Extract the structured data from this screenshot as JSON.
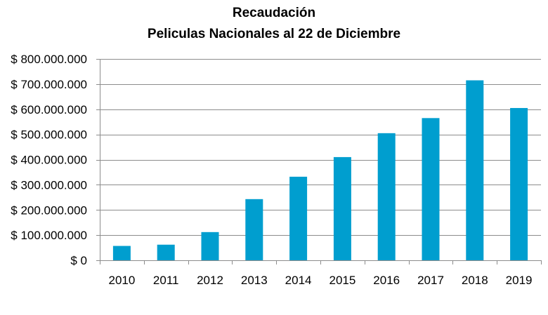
{
  "chart_data": {
    "type": "bar",
    "title": [
      "Recaudación",
      "Peliculas Nacionales  al  22 de Diciembre"
    ],
    "xlabel": "",
    "ylabel": "",
    "categories": [
      "2010",
      "2011",
      "2012",
      "2013",
      "2014",
      "2015",
      "2016",
      "2017",
      "2018",
      "2019"
    ],
    "values": [
      57000000,
      62000000,
      112000000,
      243000000,
      332000000,
      410000000,
      505000000,
      565000000,
      715000000,
      605000000
    ],
    "ylim": [
      0,
      800000000
    ],
    "y_ticks": [
      0,
      100000000,
      200000000,
      300000000,
      400000000,
      500000000,
      600000000,
      700000000,
      800000000
    ],
    "y_tick_labels": [
      "$ 0",
      "$ 100.000.000",
      "$ 200.000.000",
      "$ 300.000.000",
      "$ 400.000.000",
      "$ 500.000.000",
      "$ 600.000.000",
      "$ 700.000.000",
      "$ 800.000.000"
    ],
    "bar_color": "#009ECF",
    "grid": true,
    "legend": "none"
  }
}
